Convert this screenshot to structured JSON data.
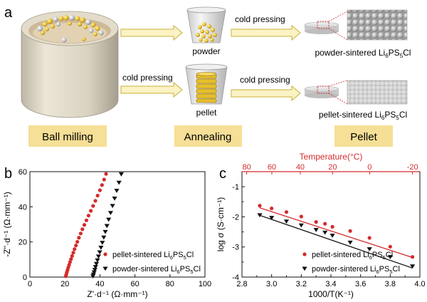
{
  "panel_a": {
    "label": "a",
    "arrow_labels": [
      "cold pressing",
      "cold pressing",
      "cold  pressing"
    ],
    "products": {
      "powder": "powder",
      "pellet": "pellet",
      "powder_sintered": "powder-sintered Li",
      "pellet_sintered": "pellet-sintered Li"
    },
    "formula_parts": {
      "base": "Li",
      "s1": "6",
      "mid": "PS",
      "s2": "5",
      "end": "Cl"
    },
    "stage_boxes": [
      "Ball milling",
      "Annealing",
      "Pellet"
    ],
    "colors": {
      "stage_box": "#f6df96",
      "arrow_fill": "#fbf3c4",
      "arrow_edge": "#c8b13a",
      "ball_gold": "#e9c233",
      "ball_silver": "#c9c9c9"
    }
  },
  "chart_data": [
    {
      "panel": "b",
      "type": "scatter",
      "xlabel": "Z'·d⁻¹ (Ω·mm⁻¹)",
      "ylabel": "-Z''·d⁻¹ (Ω·mm⁻¹)",
      "xlim": [
        0,
        100
      ],
      "ylim": [
        0,
        60
      ],
      "x_ticks": [
        0,
        20,
        40,
        60,
        80,
        100
      ],
      "y_ticks": [
        0,
        20,
        40,
        60
      ],
      "legend_position": "bottom-right",
      "series": [
        {
          "name": "pellet-sintered Li6PS5Cl",
          "marker": "circle",
          "color": "#d42b2b",
          "x": [
            20.5,
            20.8,
            21.1,
            21.5,
            21.9,
            22.4,
            22.9,
            23.5,
            24.1,
            24.8,
            25.5,
            26.3,
            27.1,
            28.0,
            29.0,
            30.0,
            31.1,
            32.3,
            33.5,
            34.8,
            36.1,
            37.4,
            38.7,
            40.0,
            41.2,
            42.4,
            43.5
          ],
          "y": [
            0.5,
            1.5,
            2.7,
            4.0,
            5.4,
            6.9,
            8.5,
            10.2,
            12.0,
            13.9,
            15.9,
            18.0,
            20.1,
            22.4,
            24.8,
            27.2,
            29.7,
            32.3,
            35.0,
            37.7,
            40.5,
            43.4,
            46.4,
            49.4,
            52.4,
            55.5,
            58.7
          ]
        },
        {
          "name": "powder-sintered Li6PS5Cl",
          "marker": "triangle-down",
          "color": "#111111",
          "x": [
            36.0,
            36.3,
            36.7,
            37.1,
            37.5,
            38.0,
            38.6,
            39.2,
            39.9,
            40.6,
            41.4,
            42.2,
            43.1,
            44.0,
            45.0,
            46.1,
            47.2,
            48.4,
            49.6,
            50.9,
            52.2
          ],
          "y": [
            0.5,
            1.5,
            2.8,
            4.2,
            5.8,
            7.6,
            9.6,
            11.8,
            14.2,
            16.8,
            19.6,
            22.6,
            25.8,
            29.2,
            32.8,
            36.6,
            40.6,
            44.8,
            49.2,
            53.8,
            58.6
          ]
        }
      ]
    },
    {
      "panel": "c",
      "type": "scatter",
      "xlabel": "1000/T(K⁻¹)",
      "ylabel": "log σ (S·cm⁻¹)",
      "top_axis_label": "Temperature(°C)",
      "top_axis_ticks": [
        80,
        60,
        40,
        20,
        0,
        -20
      ],
      "xlim": [
        2.8,
        4.0
      ],
      "ylim": [
        -4,
        -0.5
      ],
      "x_ticks": [
        2.8,
        2.9,
        3.0,
        3.1,
        3.2,
        3.3,
        3.4,
        3.5,
        3.6,
        3.7,
        3.8,
        3.9,
        4.0
      ],
      "x_tick_labels": [
        2.8,
        3.0,
        3.2,
        3.4,
        3.6,
        3.8,
        4.0
      ],
      "y_ticks": [
        -1,
        -1.5,
        -2,
        -2.5,
        -3,
        -3.5,
        -4
      ],
      "y_tick_labels": [
        -1,
        -2,
        -3,
        -4
      ],
      "legend_position": "bottom-right",
      "series": [
        {
          "name": "pellet-sintered Li6PS5Cl",
          "marker": "circle",
          "color": "#d42b2b",
          "x": [
            2.92,
            3.0,
            3.1,
            3.2,
            3.3,
            3.36,
            3.41,
            3.53,
            3.66,
            3.8,
            3.95
          ],
          "y": [
            -1.63,
            -1.72,
            -1.84,
            -1.99,
            -2.17,
            -2.23,
            -2.33,
            -2.47,
            -2.7,
            -2.99,
            -3.33
          ],
          "fit_y": [
            -1.7,
            -3.35
          ]
        },
        {
          "name": "powder-sintered Li6PS5Cl",
          "marker": "triangle-down",
          "color": "#111111",
          "x": [
            2.92,
            3.0,
            3.1,
            3.2,
            3.3,
            3.36,
            3.41,
            3.53,
            3.66,
            3.8,
            3.95
          ],
          "y": [
            -1.94,
            -2.03,
            -2.15,
            -2.28,
            -2.43,
            -2.52,
            -2.62,
            -2.85,
            -3.07,
            -3.33,
            -3.64
          ],
          "fit_y": [
            -1.95,
            -3.7
          ]
        }
      ]
    }
  ]
}
